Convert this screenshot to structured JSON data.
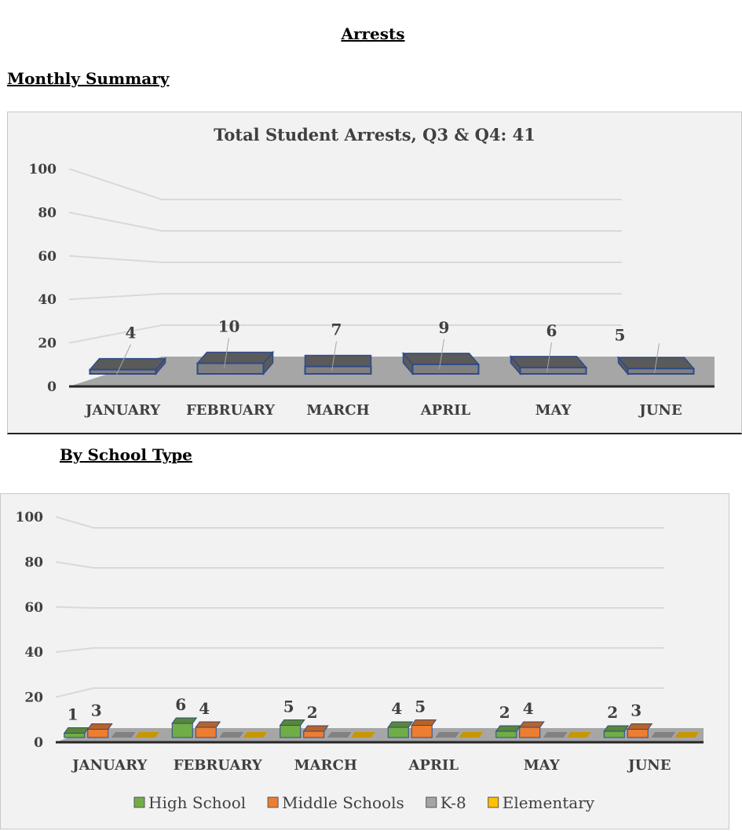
{
  "page": {
    "title": "Arrests",
    "section_monthly": "Monthly Summary",
    "section_school": "By School Type"
  },
  "chart_data": [
    {
      "type": "bar",
      "title": "Total Student Arrests, Q3 & Q4:  41",
      "categories": [
        "JANUARY",
        "FEBRUARY",
        "MARCH",
        "APRIL",
        "MAY",
        "JUNE"
      ],
      "values": [
        4,
        10,
        7,
        9,
        6,
        5
      ],
      "ylim": [
        0,
        100
      ],
      "yticks": [
        0,
        20,
        40,
        60,
        80,
        100
      ],
      "grid": true,
      "style": "3d",
      "colors": {
        "bar": "#808080",
        "bar_top": "#5a5a5a",
        "edge": "#2e4a8a"
      }
    },
    {
      "type": "bar",
      "title": "",
      "categories": [
        "JANUARY",
        "FEBRUARY",
        "MARCH",
        "APRIL",
        "MAY",
        "JUNE"
      ],
      "series": [
        {
          "name": "High School",
          "values": [
            1,
            6,
            5,
            4,
            2,
            2
          ],
          "color": "#70ad47"
        },
        {
          "name": "Middle Schools",
          "values": [
            3,
            4,
            2,
            5,
            4,
            3
          ],
          "color": "#ed7d31"
        },
        {
          "name": "K-8",
          "values": [
            0,
            0,
            0,
            0,
            0,
            0
          ],
          "color": "#a5a5a5"
        },
        {
          "name": "Elementary",
          "values": [
            0,
            0,
            0,
            0,
            0,
            0
          ],
          "color": "#ffc000"
        }
      ],
      "ylim": [
        0,
        100
      ],
      "yticks": [
        0,
        20,
        40,
        60,
        80,
        100
      ],
      "grid": true,
      "legend": "bottom",
      "style": "3d"
    }
  ]
}
